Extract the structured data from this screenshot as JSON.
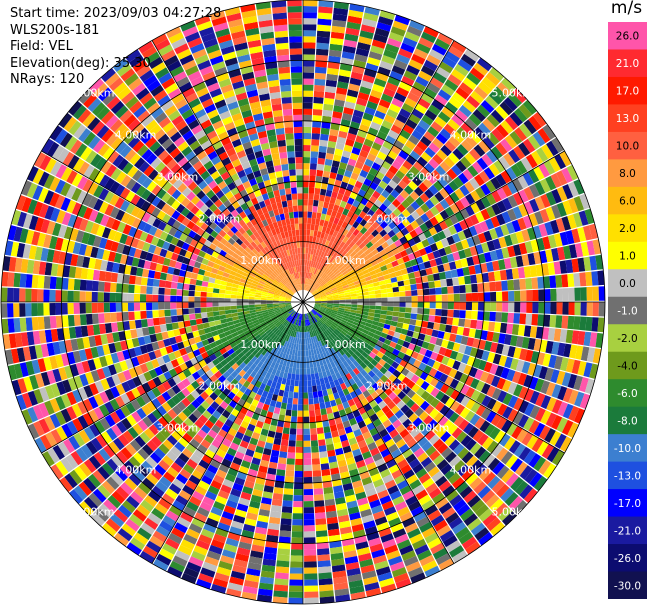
{
  "header": {
    "start_time": "Start time: 2023/09/03 04:27:28",
    "instrument": "WLS200s-181",
    "field": "Field: VEL",
    "elevation": "Elevation(deg): 35.30",
    "nrays": "NRays: 120"
  },
  "colorbar": {
    "unit": "m/s",
    "segments": [
      {
        "label": "26.0",
        "color": "#ff55aa"
      },
      {
        "label": "21.0",
        "color": "#ff2a30"
      },
      {
        "label": "17.0",
        "color": "#ff1a00"
      },
      {
        "label": "13.0",
        "color": "#ff4020"
      },
      {
        "label": "10.0",
        "color": "#ff6040"
      },
      {
        "label": "8.0",
        "color": "#ff9a40"
      },
      {
        "label": "6.0",
        "color": "#ffbb10"
      },
      {
        "label": "2.0",
        "color": "#ffe000"
      },
      {
        "label": "1.0",
        "color": "#ffff00"
      },
      {
        "label": "0.0",
        "color": "#c0c0c0"
      },
      {
        "label": "-1.0",
        "color": "#707070"
      },
      {
        "label": "-2.0",
        "color": "#a8d040"
      },
      {
        "label": "-4.0",
        "color": "#6e9a1c"
      },
      {
        "label": "-6.0",
        "color": "#2e8b2e"
      },
      {
        "label": "-8.0",
        "color": "#1b7b3b"
      },
      {
        "label": "-10.0",
        "color": "#3c7fd0"
      },
      {
        "label": "-13.0",
        "color": "#1e50e0"
      },
      {
        "label": "-17.0",
        "color": "#0000ff"
      },
      {
        "label": "-21.0",
        "color": "#1a1aa0"
      },
      {
        "label": "-26.0",
        "color": "#0c0c70"
      },
      {
        "label": "-30.0",
        "color": "#111150"
      }
    ]
  },
  "chart_data": {
    "type": "heatmap",
    "projection": "polar",
    "field": "VEL",
    "units": "m/s",
    "rays": 120,
    "ring_labels": [
      "1.00km",
      "2.00km",
      "3.00km",
      "4.00km",
      "5.00km"
    ],
    "ring_radii_km": [
      1.0,
      2.0,
      3.0,
      4.0,
      5.0
    ],
    "max_range_km": 5.0,
    "spokes_deg": [
      0,
      30,
      60,
      90,
      120,
      150,
      180,
      210,
      240,
      270,
      300,
      330
    ],
    "velocity_pattern": "positive (away, warm colors) in north half, negative (toward, cool colors) in south half, near zero along east-west axis, noisy beyond ~1.7 km"
  }
}
